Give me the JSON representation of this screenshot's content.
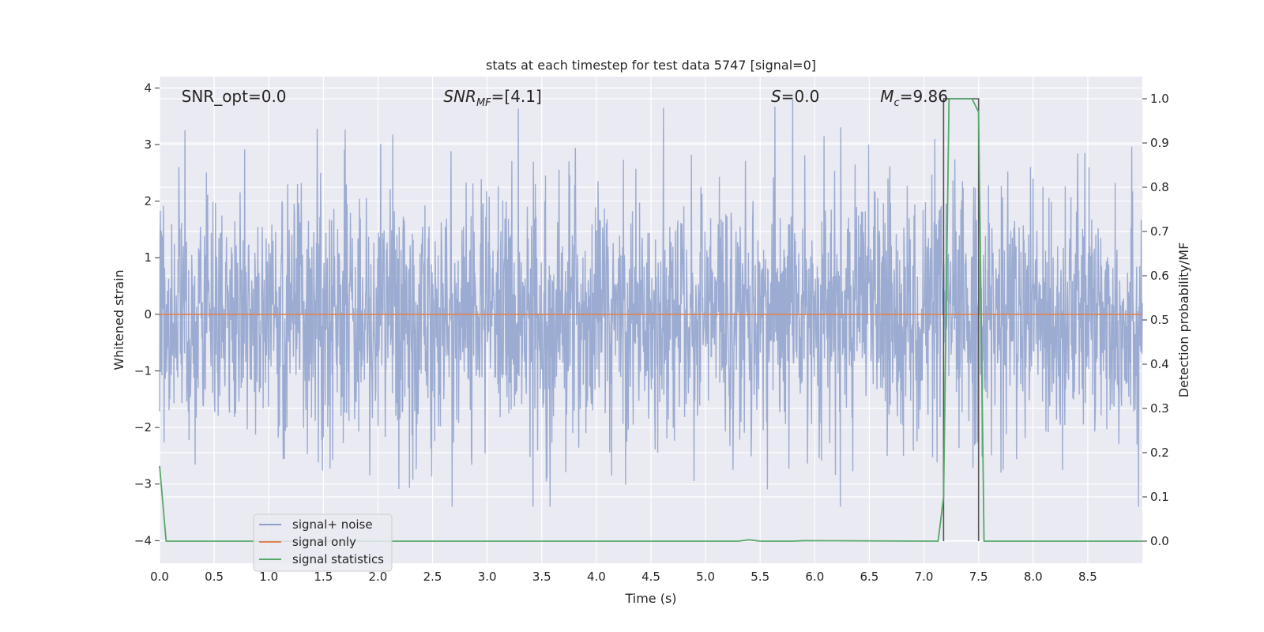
{
  "chart_data": {
    "type": "line",
    "title": "stats at each timestep for test data 5747 [signal=0]",
    "xlabel": "Time (s)",
    "ylabel": "Whitened strain",
    "y2label": "Detection probability/MF",
    "xlim": [
      0.0,
      9.0
    ],
    "ylim": [
      -4.4,
      4.2
    ],
    "y2lim": [
      -0.05,
      1.05
    ],
    "x_ticks": [
      "0.0",
      "0.5",
      "1.0",
      "1.5",
      "2.0",
      "2.5",
      "3.0",
      "3.5",
      "4.0",
      "4.5",
      "5.0",
      "5.5",
      "6.0",
      "6.5",
      "7.0",
      "7.5",
      "8.0",
      "8.5"
    ],
    "y_ticks": [
      "4",
      "3",
      "2",
      "1",
      "0",
      "−1",
      "−2",
      "−3",
      "−4"
    ],
    "y2_ticks": [
      "1.0",
      "0.9",
      "0.8",
      "0.7",
      "0.6",
      "0.5",
      "0.4",
      "0.3",
      "0.2",
      "0.1",
      "0.0"
    ],
    "grid": true,
    "legend_position": "lower-left",
    "annotations": [
      {
        "text": "SNR_opt=0.0",
        "x": 0.2,
        "y": 3.85
      },
      {
        "text": "SNR",
        "sub": "MF",
        "suffix": "=[4.1]",
        "x": 2.6,
        "y": 3.85
      },
      {
        "text": "S",
        "suffix": "=0.0",
        "x": 5.6,
        "y": 3.85
      },
      {
        "text": "M",
        "sub": "c",
        "suffix": "=9.86",
        "x": 6.6,
        "y": 3.85
      }
    ],
    "series": [
      {
        "name": "signal+ noise",
        "color": "#8da0cb",
        "axis": "left",
        "kind": "noise",
        "spread": 1.5,
        "peak_positive": 3.8,
        "peak_negative": -3.4
      },
      {
        "name": "signal only",
        "color": "#dd8452",
        "axis": "left",
        "x": [
          0.0,
          9.0
        ],
        "y": [
          0.0,
          0.0
        ]
      },
      {
        "name": "signal statistics",
        "color": "#55a868",
        "axis": "right",
        "x": [
          0.0,
          0.06,
          0.12,
          5.3,
          5.4,
          5.5,
          5.8,
          5.9,
          7.13,
          7.18,
          7.23,
          7.44,
          7.5,
          7.55,
          7.6,
          9.0
        ],
        "y": [
          0.17,
          0.0,
          0.0,
          0.0,
          0.003,
          0.0,
          0.0,
          0.001,
          0.0,
          0.1,
          1.0,
          1.0,
          0.97,
          0.0,
          0.0,
          0.0
        ]
      },
      {
        "name": "",
        "color": "#555555",
        "axis": "right",
        "kind": "bounds",
        "x": [
          7.18,
          7.18,
          7.5,
          7.5
        ],
        "y": [
          0.0,
          1.0,
          1.0,
          0.0
        ]
      }
    ]
  }
}
